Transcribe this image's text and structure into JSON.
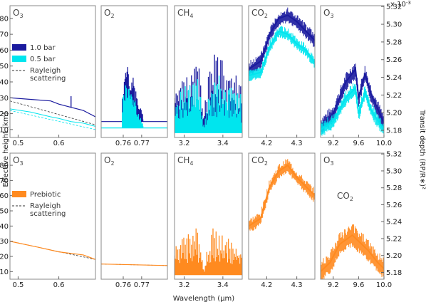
{
  "figure": {
    "scale_note": "x 10",
    "scale_exp": "-3"
  },
  "chart_data": {
    "type": "line",
    "xlabel": "Wavelength (μm)",
    "ylabel_left": "Effective height (km)",
    "ylabel_right": "Transit depth (RP/R∗)²",
    "ylim_left": [
      5,
      88
    ],
    "ylim_right": [
      5.172,
      5.321
    ],
    "yticks_left": [
      10,
      20,
      30,
      40,
      50,
      60,
      70,
      80
    ],
    "yticks_right": [
      "5.18",
      "5.20",
      "5.22",
      "5.24",
      "5.26",
      "5.28",
      "5.30",
      "5.32"
    ],
    "colors": {
      "bar1": "#1a1a9e",
      "bar05": "#00e5ee",
      "prebiotic": "#ff8a1f",
      "rayleigh": "#333333",
      "frame": "#888888"
    },
    "legend_top": [
      {
        "name": "1.0 bar",
        "style": "patch",
        "color": "#1a1a9e"
      },
      {
        "name": "0.5 bar",
        "style": "patch",
        "color": "#00e5ee"
      },
      {
        "name": "Rayleigh",
        "name2": "scattering",
        "style": "dashed",
        "color": "#333333"
      }
    ],
    "legend_bottom": [
      {
        "name": "Prebiotic",
        "style": "patch",
        "color": "#ff8a1f"
      },
      {
        "name": "Rayleigh",
        "name2": "scattering",
        "style": "dashed",
        "color": "#333333"
      }
    ],
    "panels": [
      {
        "gas": "O",
        "sub": "3",
        "xlim": [
          0.48,
          0.69
        ],
        "xticks": [
          {
            "v": 0.5,
            "t": "0.5"
          },
          {
            "v": 0.6,
            "t": "0.6"
          }
        ],
        "top": {
          "kind": "smooth",
          "bar1": [
            [
              0.48,
              30
            ],
            [
              0.53,
              29
            ],
            [
              0.58,
              28
            ],
            [
              0.6,
              26
            ],
            [
              0.63,
              24
            ],
            [
              0.66,
              22
            ],
            [
              0.69,
              18
            ]
          ],
          "bar05": [
            [
              0.48,
              23
            ],
            [
              0.53,
              21
            ],
            [
              0.58,
              18
            ],
            [
              0.6,
              17
            ],
            [
              0.63,
              15
            ],
            [
              0.66,
              14
            ],
            [
              0.69,
              12
            ]
          ],
          "rayleigh1": [
            [
              0.48,
              28
            ],
            [
              0.69,
              13
            ]
          ],
          "rayleigh05": [
            [
              0.48,
              22
            ],
            [
              0.69,
              10
            ]
          ],
          "spike_x": 0.63,
          "spike_top": 31
        },
        "bottom": {
          "kind": "smooth",
          "pre": [
            [
              0.48,
              30
            ],
            [
              0.55,
              26
            ],
            [
              0.6,
              23
            ],
            [
              0.66,
              21
            ],
            [
              0.69,
              18
            ]
          ],
          "rayleigh": [
            [
              0.48,
              30
            ],
            [
              0.69,
              18
            ]
          ]
        }
      },
      {
        "gas": "O",
        "sub": "2",
        "xlim": [
          0.748,
          0.784
        ],
        "xticks": [
          {
            "v": 0.76,
            "t": "0.76"
          },
          {
            "v": 0.77,
            "t": "0.77"
          }
        ],
        "top": {
          "kind": "bands",
          "base1": 15,
          "base05": 11,
          "lines": 30,
          "seed": 2,
          "x0": 0.7595,
          "x1": 0.7705,
          "env1": [
            [
              0.7595,
              35
            ],
            [
              0.761,
              50
            ],
            [
              0.763,
              52
            ],
            [
              0.765,
              45
            ],
            [
              0.768,
              30
            ],
            [
              0.7705,
              20
            ]
          ],
          "env05": [
            [
              0.7595,
              28
            ],
            [
              0.761,
              42
            ],
            [
              0.763,
              44
            ],
            [
              0.765,
              34
            ],
            [
              0.768,
              22
            ],
            [
              0.7705,
              14
            ]
          ]
        },
        "bottom": {
          "kind": "smooth",
          "pre": [
            [
              0.748,
              15
            ],
            [
              0.784,
              14
            ]
          ],
          "rayleigh": [
            [
              0.748,
              15
            ],
            [
              0.784,
              14
            ]
          ]
        }
      },
      {
        "gas": "CH",
        "sub": "4",
        "xlim": [
          3.15,
          3.5
        ],
        "xticks": [
          {
            "v": 3.2,
            "t": "3.2"
          },
          {
            "v": 3.4,
            "t": "3.4"
          }
        ],
        "top": {
          "kind": "bands",
          "base1": 11,
          "base05": 8,
          "lines": 44,
          "seed": 3,
          "x0": 3.15,
          "x1": 3.5,
          "env1": [
            [
              3.15,
              40
            ],
            [
              3.22,
              48
            ],
            [
              3.28,
              58
            ],
            [
              3.3,
              20
            ],
            [
              3.34,
              60
            ],
            [
              3.42,
              52
            ],
            [
              3.5,
              40
            ]
          ],
          "env05": [
            [
              3.15,
              32
            ],
            [
              3.22,
              40
            ],
            [
              3.28,
              48
            ],
            [
              3.3,
              15
            ],
            [
              3.34,
              50
            ],
            [
              3.42,
              42
            ],
            [
              3.5,
              32
            ]
          ]
        },
        "bottom": {
          "kind": "bands",
          "base": 8,
          "lines": 44,
          "seed": 4,
          "x0": 3.15,
          "x1": 3.5,
          "env": [
            [
              3.15,
              30
            ],
            [
              3.22,
              38
            ],
            [
              3.28,
              40
            ],
            [
              3.3,
              12
            ],
            [
              3.34,
              40
            ],
            [
              3.42,
              34
            ],
            [
              3.5,
              28
            ]
          ]
        }
      },
      {
        "gas": "CO",
        "sub": "2",
        "xlim": [
          4.14,
          4.36
        ],
        "xticks": [
          {
            "v": 4.2,
            "t": "4.2"
          },
          {
            "v": 4.3,
            "t": "4.3"
          }
        ],
        "top": {
          "kind": "dense",
          "seed": 5,
          "amp1": 5,
          "amp05": 4,
          "env1": [
            [
              4.14,
              48
            ],
            [
              4.18,
              53
            ],
            [
              4.21,
              70
            ],
            [
              4.24,
              80
            ],
            [
              4.27,
              82
            ],
            [
              4.3,
              78
            ],
            [
              4.33,
              72
            ],
            [
              4.36,
              66
            ]
          ],
          "env05": [
            [
              4.14,
              44
            ],
            [
              4.18,
              46
            ],
            [
              4.21,
              62
            ],
            [
              4.24,
              72
            ],
            [
              4.27,
              70
            ],
            [
              4.3,
              64
            ],
            [
              4.33,
              60
            ],
            [
              4.36,
              52
            ]
          ]
        },
        "bottom": {
          "kind": "dense",
          "seed": 6,
          "amp": 5,
          "env": [
            [
              4.14,
              40
            ],
            [
              4.18,
              45
            ],
            [
              4.21,
              66
            ],
            [
              4.24,
              76
            ],
            [
              4.27,
              80
            ],
            [
              4.3,
              72
            ],
            [
              4.33,
              66
            ],
            [
              4.36,
              60
            ]
          ]
        }
      },
      {
        "gas": "O",
        "sub": "3",
        "xlim": [
          9.0,
          10.0
        ],
        "xticks": [
          {
            "v": 9.2,
            "t": "9.2"
          },
          {
            "v": 9.6,
            "t": "9.6"
          },
          {
            "v": 10.0,
            "t": "10.0"
          }
        ],
        "top": {
          "kind": "dense",
          "seed": 7,
          "amp1": 6,
          "amp05": 5,
          "env1": [
            [
              9.0,
              12
            ],
            [
              9.2,
              20
            ],
            [
              9.4,
              40
            ],
            [
              9.55,
              48
            ],
            [
              9.6,
              30
            ],
            [
              9.7,
              45
            ],
            [
              9.8,
              32
            ],
            [
              10.0,
              14
            ]
          ],
          "env05": [
            [
              9.0,
              10
            ],
            [
              9.2,
              15
            ],
            [
              9.4,
              30
            ],
            [
              9.55,
              36
            ],
            [
              9.6,
              20
            ],
            [
              9.7,
              34
            ],
            [
              9.8,
              22
            ],
            [
              10.0,
              10
            ]
          ]
        },
        "bottom": {
          "kind": "dense",
          "seed": 8,
          "amp": 8,
          "env": [
            [
              9.0,
              10
            ],
            [
              9.15,
              16
            ],
            [
              9.3,
              28
            ],
            [
              9.5,
              34
            ],
            [
              9.6,
              30
            ],
            [
              9.75,
              24
            ],
            [
              9.9,
              16
            ],
            [
              10.0,
              12
            ]
          ],
          "annotation": {
            "gas": "CO",
            "sub": "2"
          }
        }
      }
    ]
  }
}
